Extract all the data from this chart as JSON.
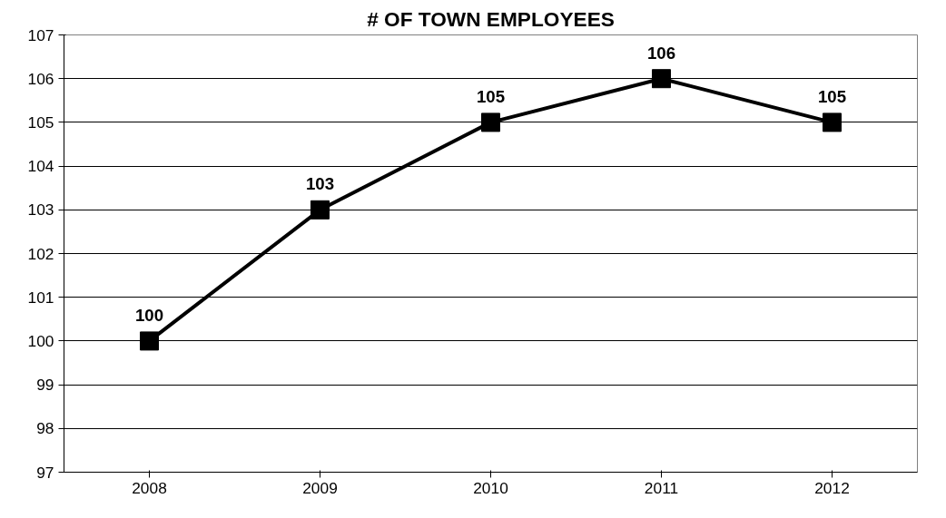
{
  "chart_data": {
    "type": "line",
    "title": "# OF TOWN EMPLOYEES",
    "categories": [
      "2008",
      "2009",
      "2010",
      "2011",
      "2012"
    ],
    "series": [
      {
        "color": "#000000",
        "values": [
          100,
          103,
          105,
          106,
          105
        ]
      }
    ],
    "ylim": [
      97,
      107
    ],
    "yticks": [
      97,
      98,
      99,
      100,
      101,
      102,
      103,
      104,
      105,
      106,
      107
    ],
    "grid": "y",
    "marker": "square",
    "line_style": "solid",
    "data_labels": true
  }
}
